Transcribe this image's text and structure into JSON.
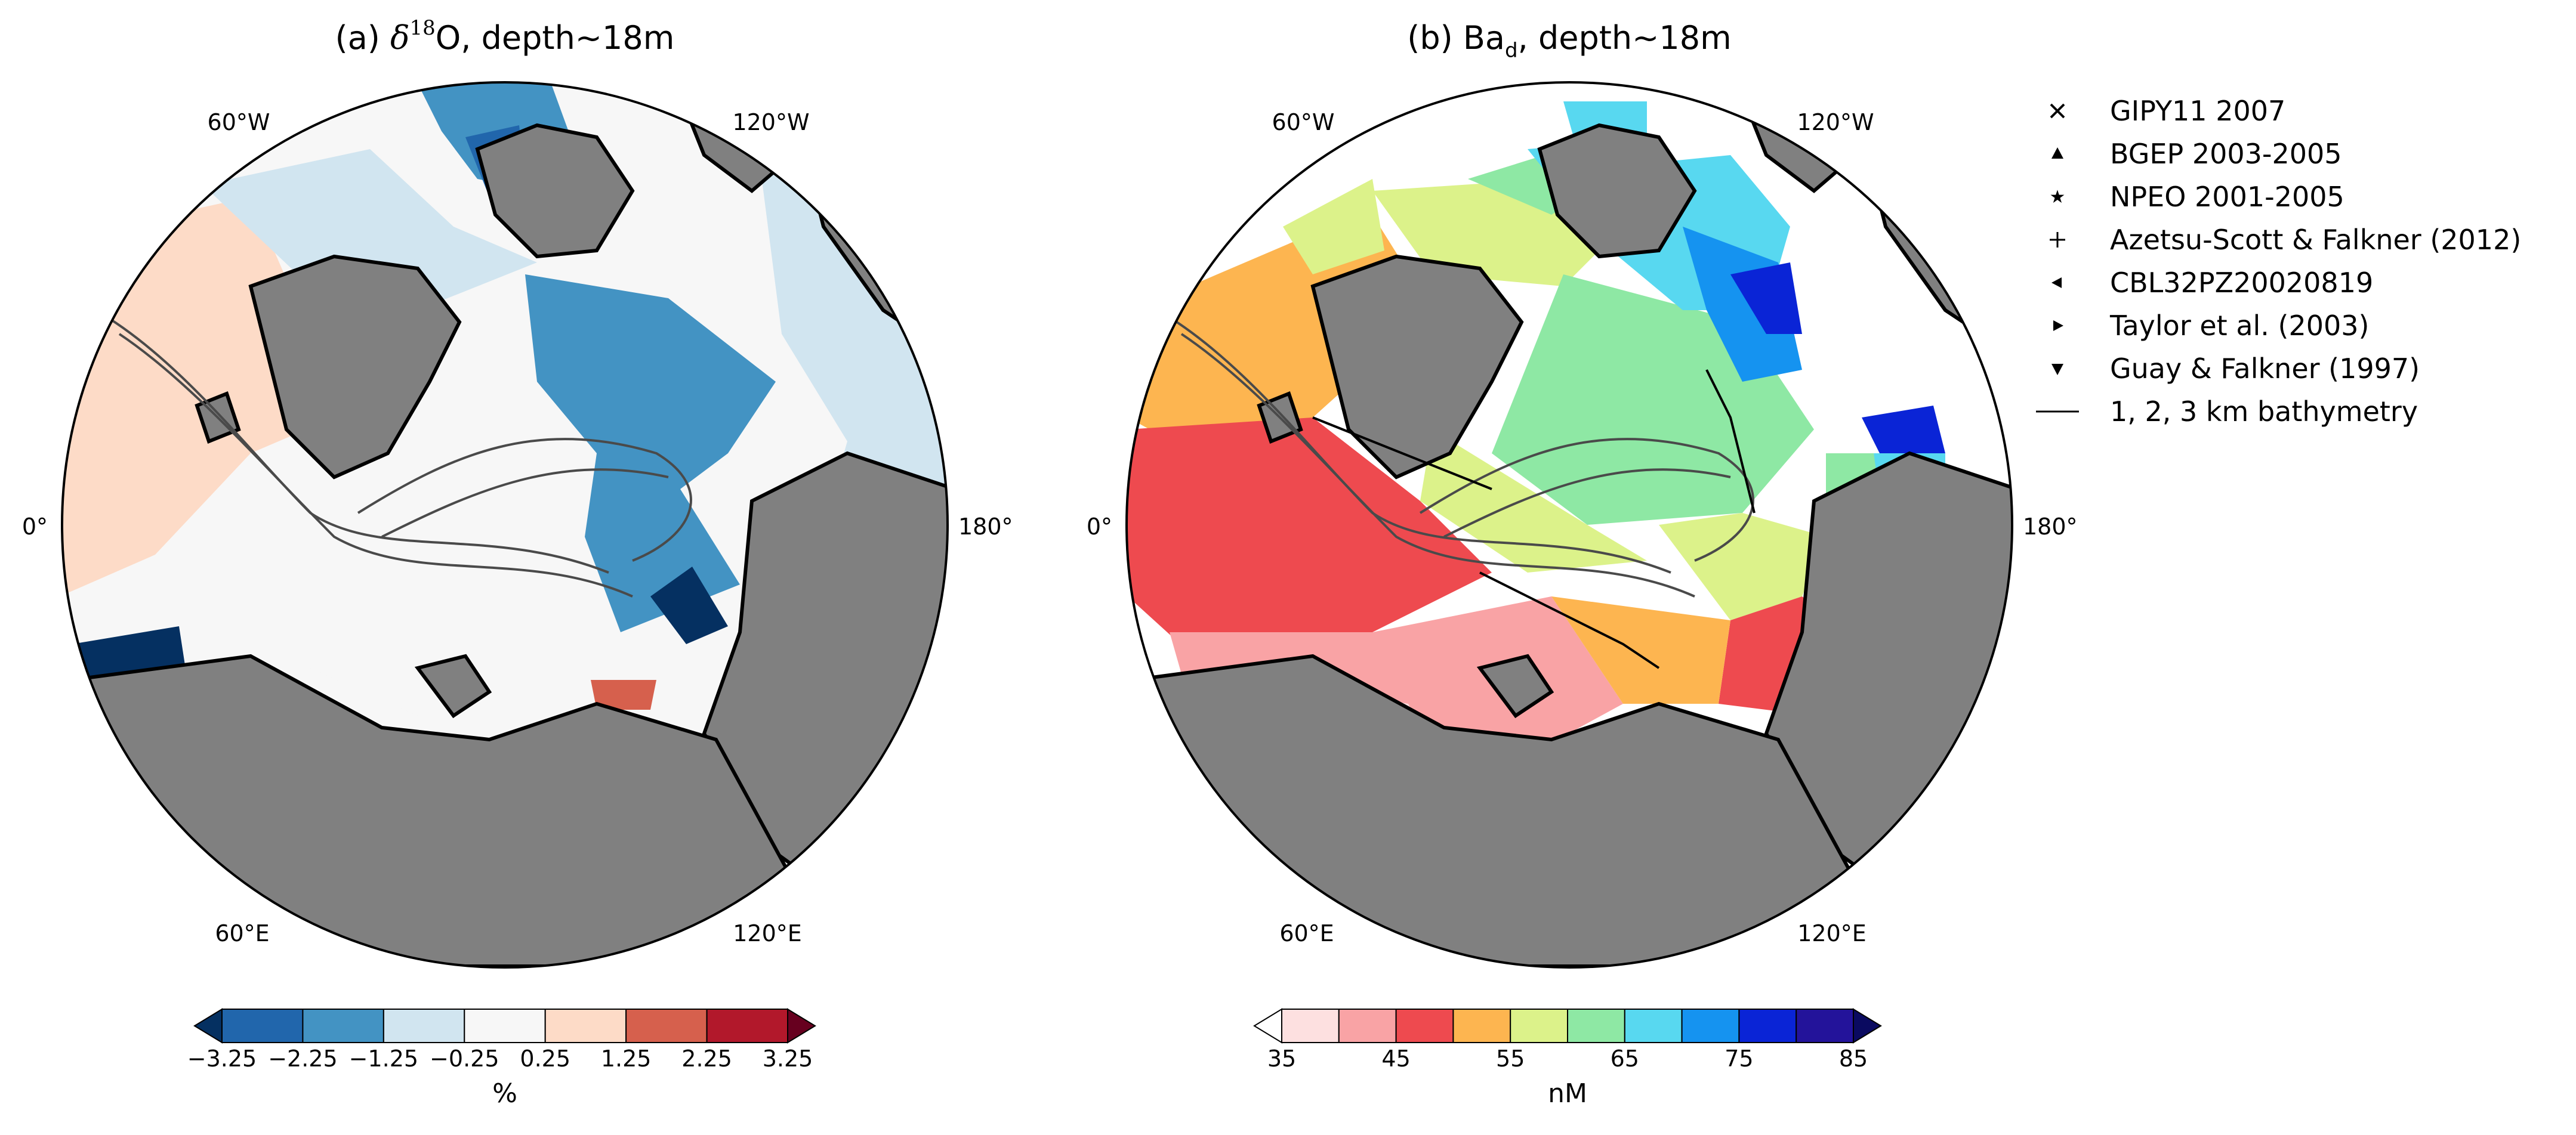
{
  "panels": [
    {
      "title_prefix": "(a) ",
      "title_symbol": "δ",
      "title_superscript": "18",
      "title_suffix": "O, depth∼18m",
      "lon_labels": {
        "lon_60w": "60°W",
        "lon_120w": "120°W",
        "lon_0": "0°",
        "lon_180": "180°",
        "lon_60e": "60°E",
        "lon_120e": "120°E"
      },
      "colorbar": {
        "colors": [
          "#053061",
          "#2166ac",
          "#4393c3",
          "#d1e5f0",
          "#f7f7f7",
          "#fddbc7",
          "#d6604d",
          "#b2182b",
          "#67001f"
        ],
        "ticks": [
          "−3.25",
          "−2.25",
          "−1.25",
          "−0.25",
          "0.25",
          "1.25",
          "2.25",
          "3.25"
        ],
        "label": "%"
      }
    },
    {
      "title_prefix": "(b) ",
      "title_symbol": "Ba",
      "title_subscript": "d",
      "title_suffix": ", depth∼18m",
      "lon_labels": {
        "lon_60w": "60°W",
        "lon_120w": "120°W",
        "lon_0": "0°",
        "lon_180": "180°",
        "lon_60e": "60°E",
        "lon_120e": "120°E"
      },
      "colorbar": {
        "colors": [
          "#ffffff",
          "#fde0e0",
          "#f9a3a5",
          "#ee4a4f",
          "#fdb550",
          "#dcf28a",
          "#8ee8a4",
          "#58d8f0",
          "#1593f0",
          "#0a24d6",
          "#23139a",
          "#0a0a60"
        ],
        "ticks": [
          "35",
          "45",
          "55",
          "65",
          "75",
          "85"
        ],
        "label": "nM"
      }
    }
  ],
  "legend": {
    "entries": [
      {
        "marker": "x-marker",
        "label": "GIPY11 2007"
      },
      {
        "marker": "triangle-up-marker",
        "label": "BGEP 2003-2005"
      },
      {
        "marker": "star-marker",
        "label": "NPEO 2001-2005"
      },
      {
        "marker": "plus-marker",
        "label": "Azetsu-Scott & Falkner (2012)"
      },
      {
        "marker": "triangle-left-marker",
        "label": "CBL32PZ20020819"
      },
      {
        "marker": "triangle-right-marker",
        "label": "Taylor et al. (2003)"
      },
      {
        "marker": "triangle-down-marker",
        "label": "Guay & Falkner (1997)"
      },
      {
        "marker": "line-marker",
        "label": "1, 2, 3 km bathymetry"
      }
    ]
  },
  "colors": {
    "land": "#808080",
    "coast": "#000000",
    "bathymetry": "#4a4a4a"
  }
}
